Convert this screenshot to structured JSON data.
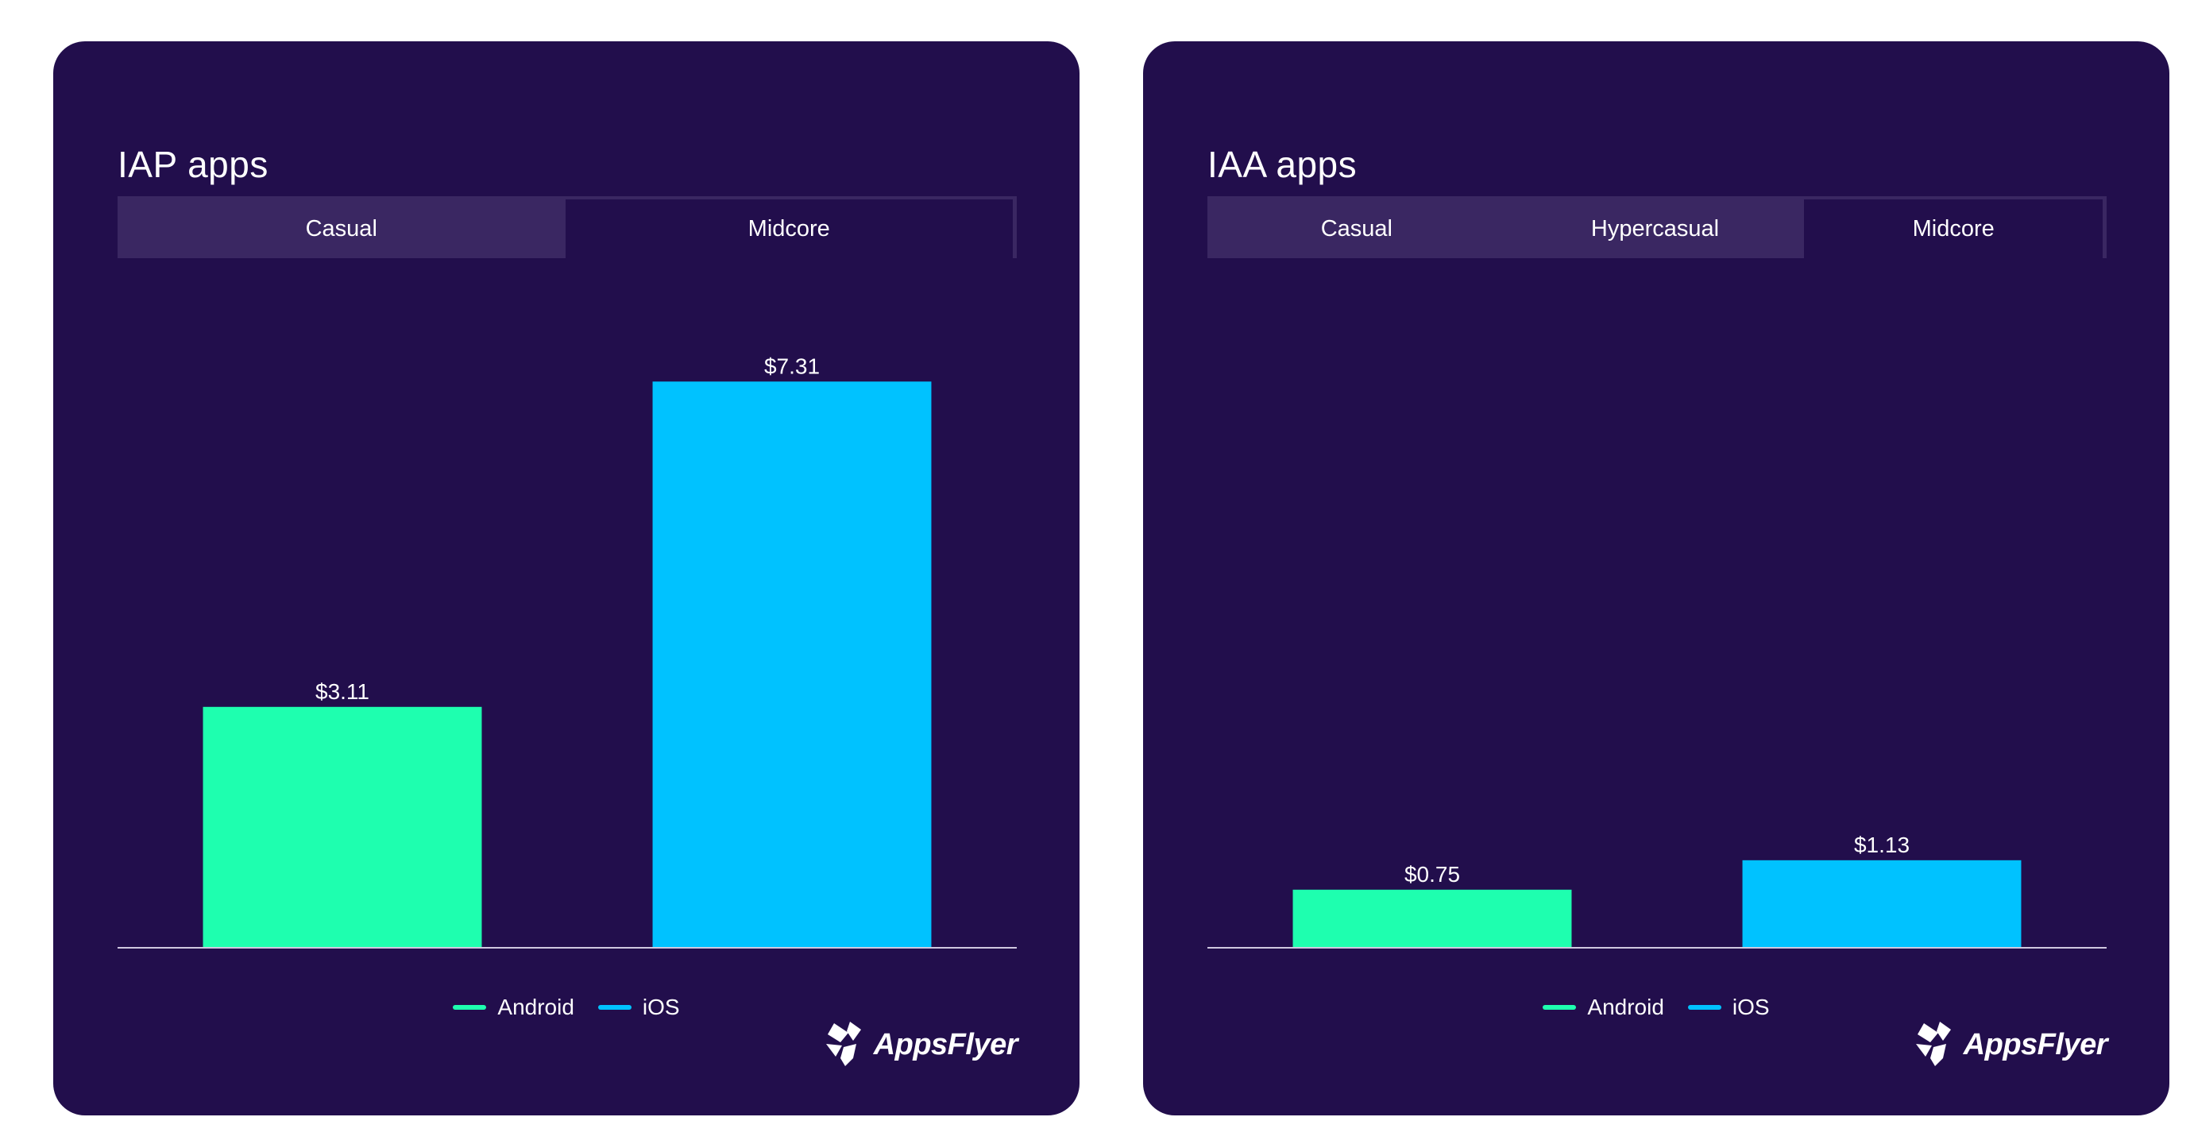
{
  "cards": [
    {
      "title": "IAP apps",
      "tabs": [
        {
          "label": "Casual",
          "active": false
        },
        {
          "label": "Midcore",
          "active": true
        }
      ],
      "legend": [
        {
          "label": "Android",
          "color": "#1effaf"
        },
        {
          "label": "iOS",
          "color": "#00c2ff"
        }
      ],
      "logo": "AppsFlyer"
    },
    {
      "title": "IAA apps",
      "tabs": [
        {
          "label": "Casual",
          "active": false
        },
        {
          "label": "Hypercasual",
          "active": false
        },
        {
          "label": "Midcore",
          "active": true
        }
      ],
      "legend": [
        {
          "label": "Android",
          "color": "#1effaf"
        },
        {
          "label": "iOS",
          "color": "#00c2ff"
        }
      ],
      "logo": "AppsFlyer"
    }
  ],
  "chart_data": [
    {
      "type": "bar",
      "title": "IAP apps",
      "categories": [
        "Android",
        "iOS"
      ],
      "values": [
        3.11,
        7.31
      ],
      "value_labels": [
        "$3.11",
        "$7.31"
      ],
      "colors": [
        "#1effaf",
        "#00c2ff"
      ],
      "ylim": [
        0,
        8
      ],
      "grid": false,
      "legend_position": "bottom-center"
    },
    {
      "type": "bar",
      "title": "IAA apps",
      "categories": [
        "Android",
        "iOS"
      ],
      "values": [
        0.75,
        1.13
      ],
      "value_labels": [
        "$0.75",
        "$1.13"
      ],
      "colors": [
        "#1effaf",
        "#00c2ff"
      ],
      "ylim": [
        0,
        8
      ],
      "grid": false,
      "legend_position": "bottom-center"
    }
  ]
}
